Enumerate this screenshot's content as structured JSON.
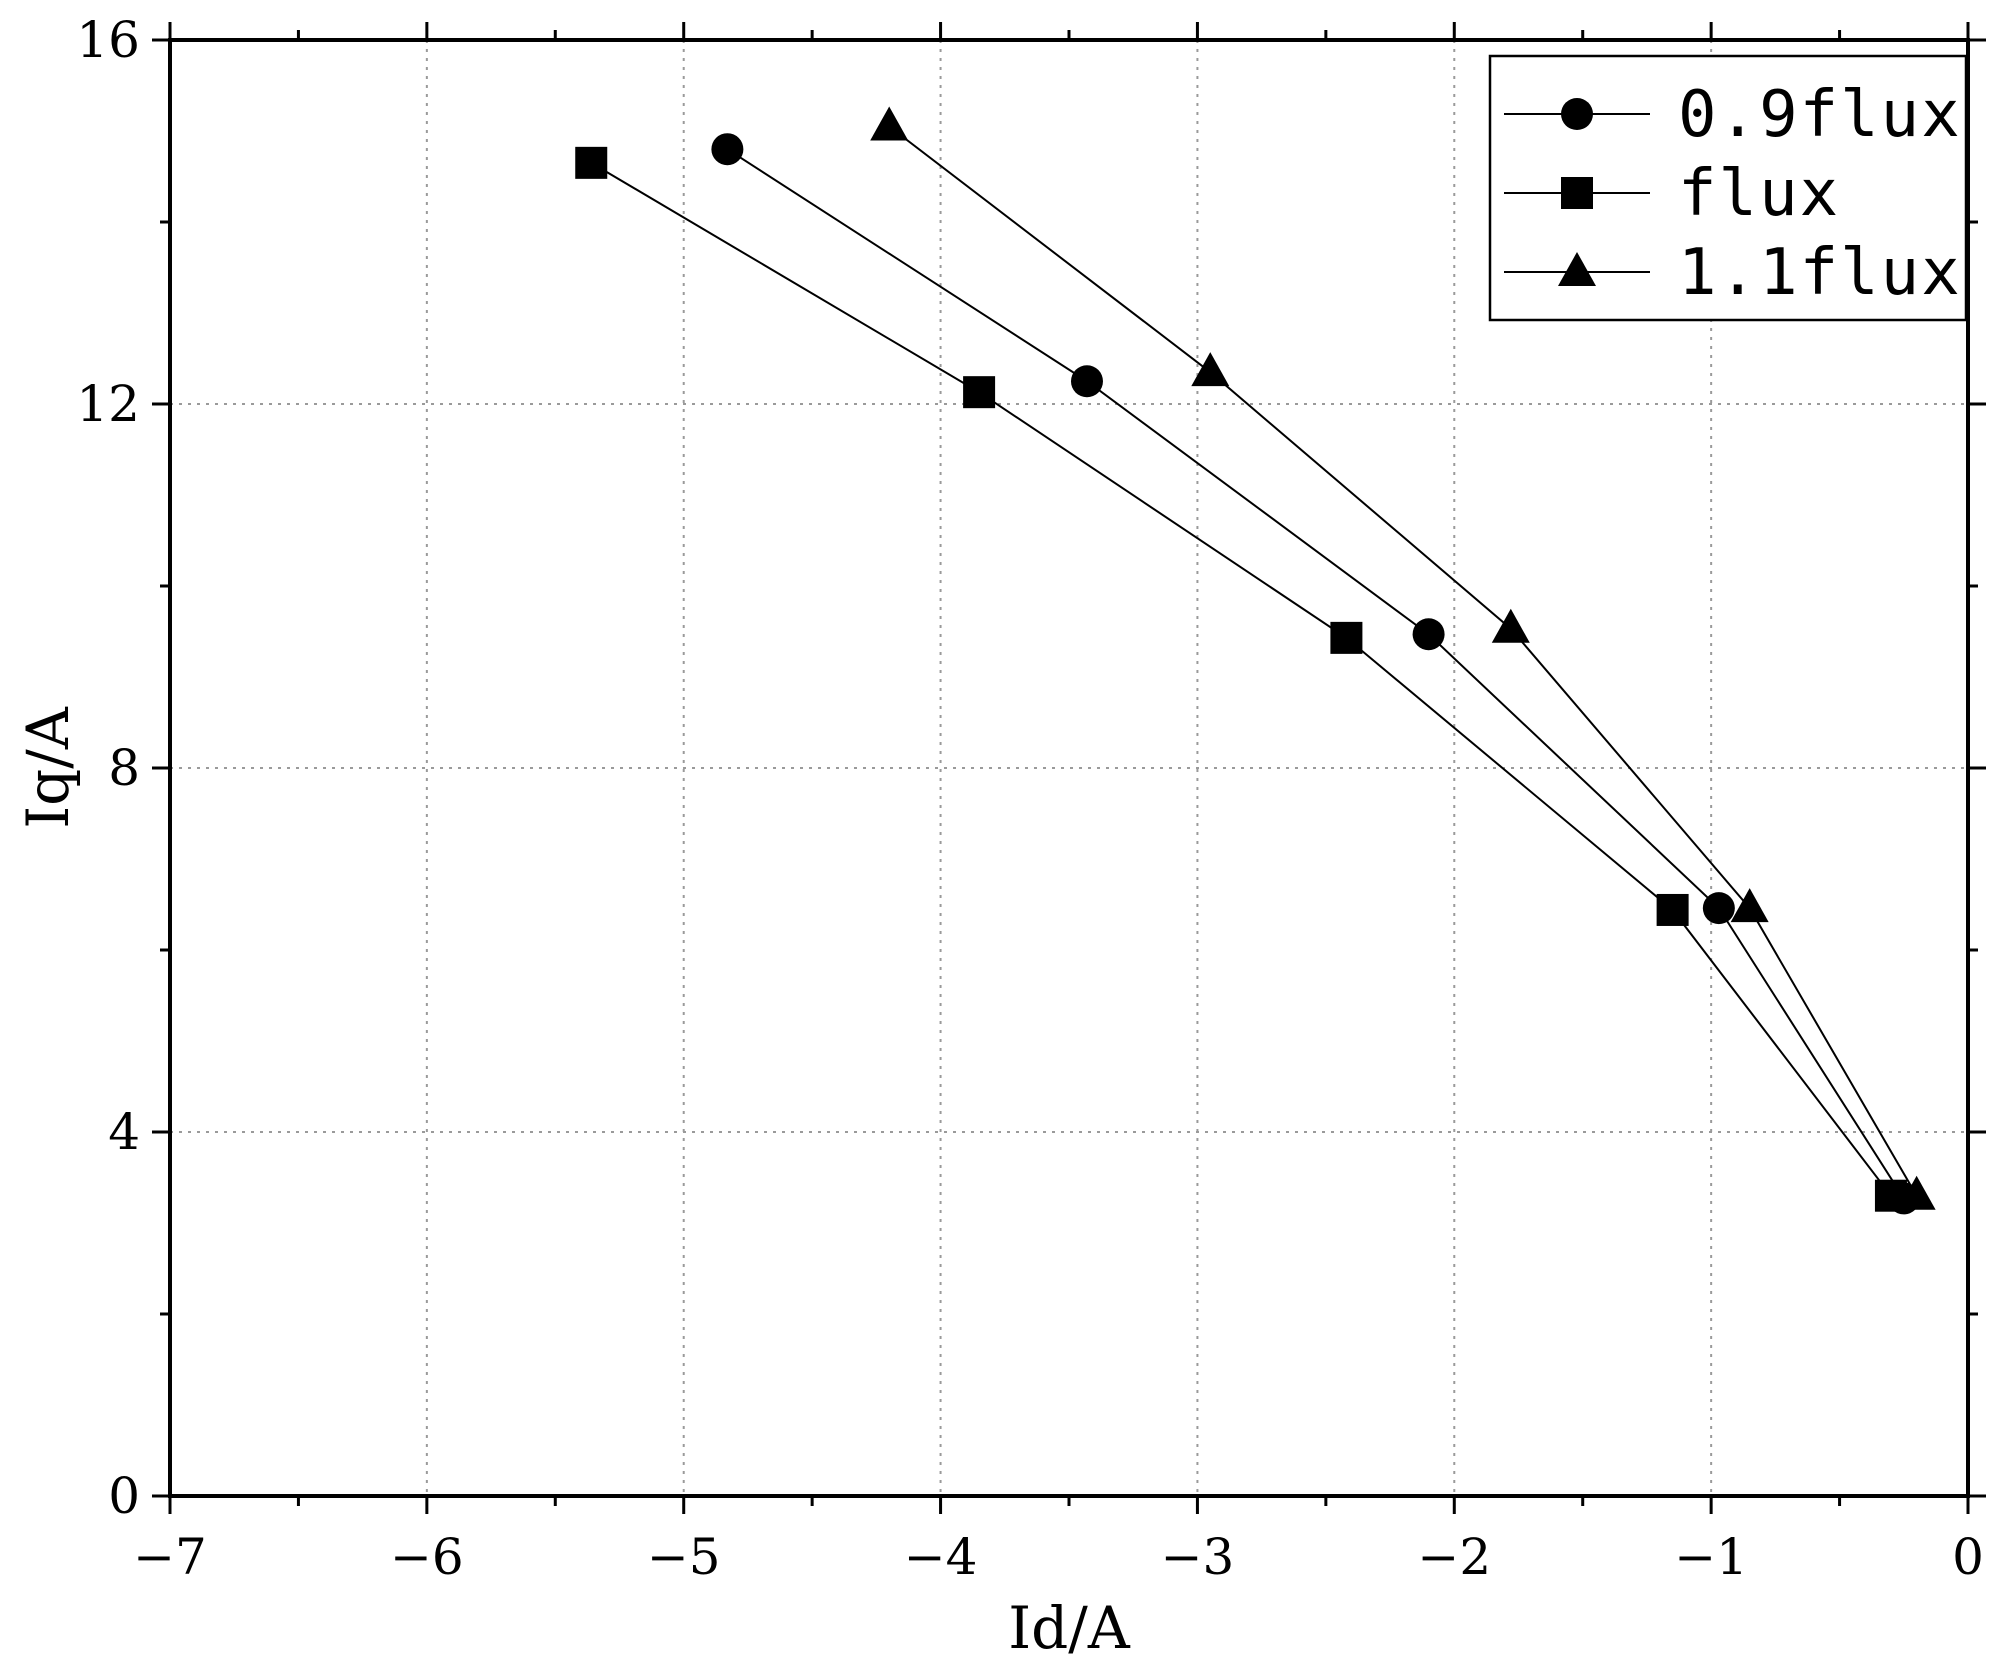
{
  "chart_data": {
    "type": "line",
    "xlabel": "Id/A",
    "ylabel": "Iq/A",
    "xlim": [
      -7,
      0
    ],
    "ylim": [
      0,
      16
    ],
    "x_ticks": [
      -7,
      -6,
      -5,
      -4,
      -3,
      -2,
      -1,
      0
    ],
    "y_ticks": [
      0,
      4,
      8,
      12,
      16
    ],
    "x_tick_labels": [
      "−7",
      "−6",
      "−5",
      "−4",
      "−3",
      "−2",
      "−1",
      "0"
    ],
    "y_tick_labels": [
      "0",
      "4",
      "8",
      "12",
      "16"
    ],
    "grid": true,
    "legend_position": "top-right",
    "series": [
      {
        "name": "0.9flux",
        "marker": "circle",
        "x": [
          -4.83,
          -3.43,
          -2.1,
          -0.97,
          -0.25
        ],
        "y": [
          14.8,
          12.25,
          9.47,
          6.46,
          3.27
        ]
      },
      {
        "name": "flux",
        "marker": "square",
        "x": [
          -5.36,
          -3.85,
          -2.42,
          -1.15,
          -0.3
        ],
        "y": [
          14.65,
          12.13,
          9.43,
          6.44,
          3.3
        ]
      },
      {
        "name": "1.1flux",
        "marker": "triangle",
        "x": [
          -4.2,
          -2.95,
          -1.78,
          -0.85,
          -0.2
        ],
        "y": [
          15.05,
          12.35,
          9.53,
          6.46,
          3.3
        ]
      }
    ]
  }
}
